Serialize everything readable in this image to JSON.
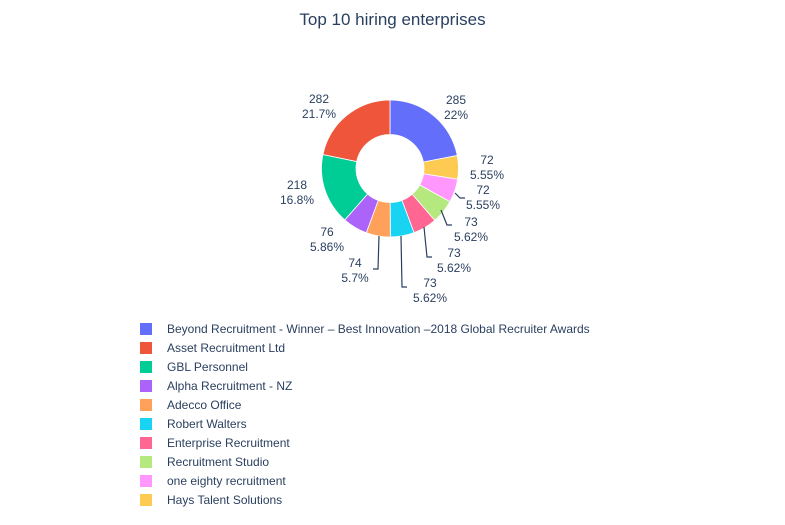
{
  "chart_data": {
    "type": "pie",
    "title": "Top 10 hiring enterprises",
    "hole": true,
    "legend_position": "bottom",
    "slices": [
      {
        "label": "Beyond Recruitment - Winner – Best Innovation –2018 Global Recruiter Awards",
        "value": 285,
        "percent": "22%",
        "value_text": "285",
        "color": "#636efa"
      },
      {
        "label": "Hays Talent Solutions",
        "value": 72,
        "percent": "5.55%",
        "value_text": "72",
        "color": "#fecb52"
      },
      {
        "label": "one eighty recruitment",
        "value": 72,
        "percent": "5.55%",
        "value_text": "72",
        "color": "#ff97ff"
      },
      {
        "label": "Recruitment Studio",
        "value": 73,
        "percent": "5.62%",
        "value_text": "73",
        "color": "#b6e880"
      },
      {
        "label": "Enterprise Recruitment",
        "value": 73,
        "percent": "5.62%",
        "value_text": "73",
        "color": "#ff6692"
      },
      {
        "label": "Robert Walters",
        "value": 73,
        "percent": "5.62%",
        "value_text": "73",
        "color": "#19d3f3"
      },
      {
        "label": "Adecco Office",
        "value": 74,
        "percent": "5.7%",
        "value_text": "74",
        "color": "#ffa15a"
      },
      {
        "label": "Alpha Recruitment - NZ",
        "value": 76,
        "percent": "5.86%",
        "value_text": "76",
        "color": "#ab63fa"
      },
      {
        "label": "GBL Personnel",
        "value": 218,
        "percent": "16.8%",
        "value_text": "218",
        "color": "#00cc96"
      },
      {
        "label": "Asset Recruitment Ltd",
        "value": 282,
        "percent": "21.7%",
        "value_text": "282",
        "color": "#ef553b"
      }
    ],
    "legend": [
      {
        "label": "Beyond Recruitment - Winner – Best Innovation –2018 Global Recruiter Awards",
        "color": "#636efa"
      },
      {
        "label": "Asset Recruitment Ltd",
        "color": "#ef553b"
      },
      {
        "label": "GBL Personnel",
        "color": "#00cc96"
      },
      {
        "label": "Alpha Recruitment - NZ",
        "color": "#ab63fa"
      },
      {
        "label": "Adecco Office",
        "color": "#ffa15a"
      },
      {
        "label": "Robert Walters",
        "color": "#19d3f3"
      },
      {
        "label": "Enterprise Recruitment",
        "color": "#ff6692"
      },
      {
        "label": "Recruitment Studio",
        "color": "#b6e880"
      },
      {
        "label": "one eighty recruitment",
        "color": "#ff97ff"
      },
      {
        "label": "Hays Talent Solutions",
        "color": "#fecb52"
      }
    ]
  }
}
